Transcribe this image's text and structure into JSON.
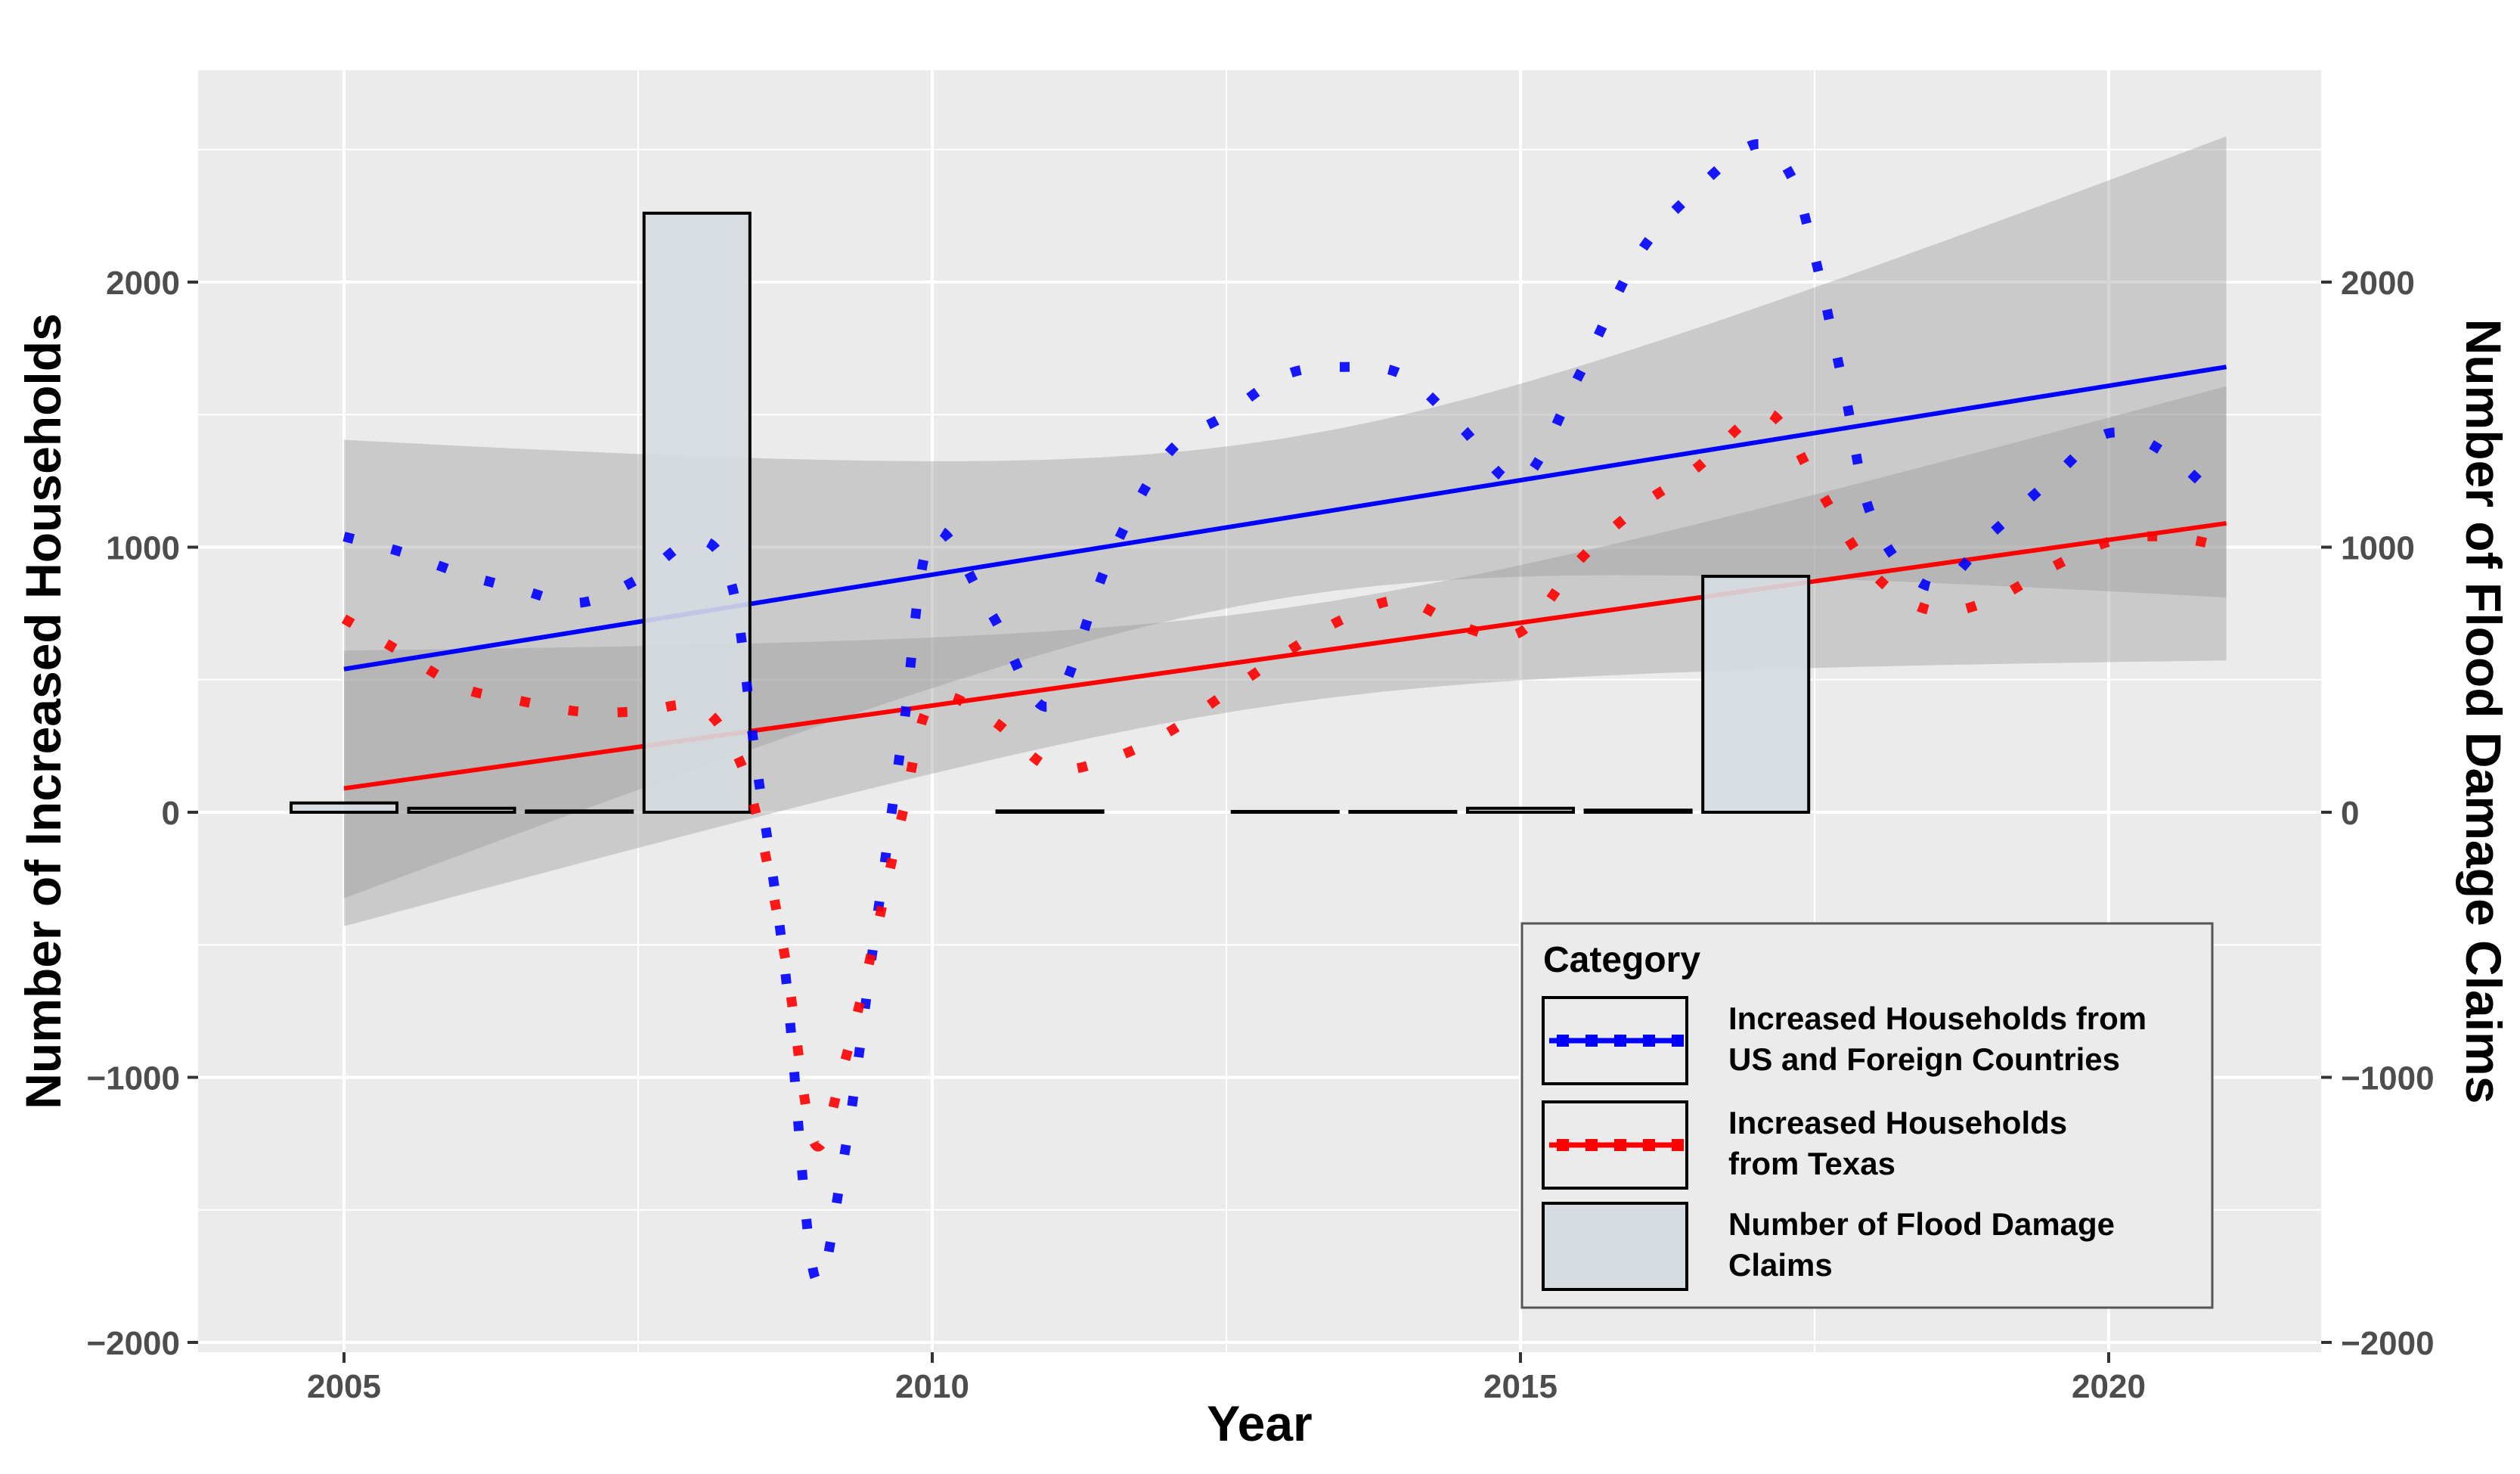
{
  "chart_data": {
    "type": "line",
    "xlabel": "Year",
    "ylabel": "Number of Increased Households",
    "y2label": "Number of Flood Damage Claims",
    "xlim": [
      2004.0,
      2021.9
    ],
    "ylim": [
      -2000,
      2800
    ],
    "xticks": [
      2005,
      2010,
      2015,
      2020
    ],
    "xtick_labels": [
      "2005",
      "2010",
      "2015",
      "2020"
    ],
    "yticks": [
      -2000,
      -1000,
      0,
      1000,
      2000
    ],
    "ytick_labels": [
      "−2000",
      "−1000",
      "0",
      "1000",
      "2000"
    ],
    "y2ticks": [
      -2000,
      -1000,
      0,
      1000,
      2000
    ],
    "y2tick_labels": [
      "−2000",
      "−1000",
      "0",
      "1000",
      "2000"
    ],
    "grid": true,
    "legend": {
      "title": "Category",
      "placement": "bottom-right",
      "items": [
        {
          "label_lines": [
            "Increased Households from",
            "US and Foreign Countries"
          ],
          "kind": "dotted-line",
          "color": "#0000ff"
        },
        {
          "label_lines": [
            "Increased Households",
            "from Texas"
          ],
          "kind": "dotted-line",
          "color": "#ff0000"
        },
        {
          "label_lines": [
            "Number of Flood Damage",
            "Claims"
          ],
          "kind": "bar",
          "color": "#d6dce1"
        }
      ]
    },
    "series": [
      {
        "name": "Increased Households from US and Foreign Countries",
        "kind": "dotted-line",
        "color": "#0000ff",
        "points": [
          [
            2005.0,
            1040
          ],
          [
            2005.5,
            980
          ],
          [
            2006.0,
            900
          ],
          [
            2006.5,
            840
          ],
          [
            2007.0,
            790
          ],
          [
            2007.5,
            880
          ],
          [
            2008.0,
            1030
          ],
          [
            2008.3,
            850
          ],
          [
            2008.5,
            200
          ],
          [
            2008.75,
            -600
          ],
          [
            2009.0,
            -1750
          ],
          [
            2009.25,
            -1300
          ],
          [
            2009.5,
            -500
          ],
          [
            2009.75,
            300
          ],
          [
            2010.0,
            1050
          ],
          [
            2010.5,
            750
          ],
          [
            2011.0,
            400
          ],
          [
            2011.5,
            950
          ],
          [
            2012.0,
            1350
          ],
          [
            2012.5,
            1500
          ],
          [
            2013.0,
            1650
          ],
          [
            2013.5,
            1680
          ],
          [
            2014.0,
            1650
          ],
          [
            2014.5,
            1450
          ],
          [
            2015.0,
            1250
          ],
          [
            2015.5,
            1650
          ],
          [
            2016.0,
            2100
          ],
          [
            2016.5,
            2350
          ],
          [
            2017.0,
            2520
          ],
          [
            2017.3,
            2400
          ],
          [
            2017.5,
            2100
          ],
          [
            2017.75,
            1600
          ],
          [
            2018.0,
            1100
          ],
          [
            2018.5,
            850
          ],
          [
            2019.0,
            1050
          ],
          [
            2019.5,
            1250
          ],
          [
            2020.0,
            1430
          ],
          [
            2020.5,
            1350
          ],
          [
            2021.0,
            1150
          ]
        ]
      },
      {
        "name": "Increased Households from Texas",
        "kind": "dotted-line",
        "color": "#ff0000",
        "points": [
          [
            2005.0,
            730
          ],
          [
            2005.5,
            600
          ],
          [
            2006.0,
            470
          ],
          [
            2006.5,
            420
          ],
          [
            2007.0,
            380
          ],
          [
            2007.5,
            380
          ],
          [
            2008.0,
            400
          ],
          [
            2008.3,
            250
          ],
          [
            2008.5,
            0
          ],
          [
            2008.75,
            -550
          ],
          [
            2009.0,
            -1250
          ],
          [
            2009.25,
            -950
          ],
          [
            2009.5,
            -500
          ],
          [
            2009.75,
            0
          ],
          [
            2010.0,
            420
          ],
          [
            2010.5,
            350
          ],
          [
            2011.0,
            170
          ],
          [
            2011.5,
            200
          ],
          [
            2012.0,
            300
          ],
          [
            2012.5,
            450
          ],
          [
            2013.0,
            600
          ],
          [
            2013.5,
            730
          ],
          [
            2014.0,
            800
          ],
          [
            2014.5,
            700
          ],
          [
            2015.0,
            680
          ],
          [
            2015.5,
            950
          ],
          [
            2016.0,
            1150
          ],
          [
            2016.5,
            1300
          ],
          [
            2017.0,
            1500
          ],
          [
            2017.25,
            1450
          ],
          [
            2017.5,
            1250
          ],
          [
            2018.0,
            900
          ],
          [
            2018.5,
            760
          ],
          [
            2019.0,
            800
          ],
          [
            2019.5,
            920
          ],
          [
            2020.0,
            1020
          ],
          [
            2020.5,
            1040
          ],
          [
            2021.0,
            1000
          ]
        ]
      },
      {
        "name": "Number of Flood Damage Claims",
        "kind": "bar",
        "axis": "y2",
        "color": "#d6dce1",
        "x": [
          2005,
          2006,
          2007,
          2008,
          2011,
          2013,
          2014,
          2015,
          2016,
          2017
        ],
        "values": [
          35,
          15,
          5,
          2260,
          5,
          3,
          3,
          15,
          8,
          890
        ]
      }
    ],
    "trend_lines": [
      {
        "color": "#0000ff",
        "x": [
          2005,
          2021
        ],
        "y": [
          540,
          1680
        ],
        "band_upper": [
          1400,
          2560
        ],
        "band_lower": [
          -330,
          820
        ]
      },
      {
        "color": "#ff0000",
        "x": [
          2005,
          2021
        ],
        "y": [
          90,
          1090
        ],
        "band_upper": [
          610,
          1610
        ],
        "band_lower": [
          -430,
          575
        ]
      }
    ]
  }
}
